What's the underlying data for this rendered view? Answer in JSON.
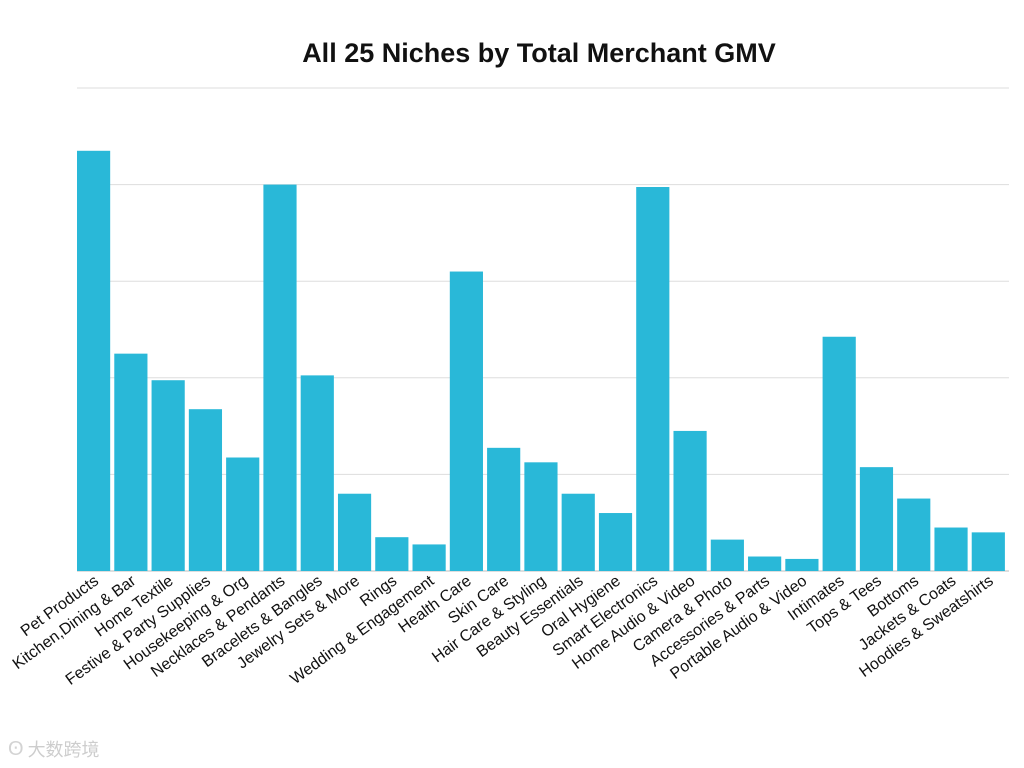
{
  "chart_data": {
    "type": "bar",
    "title": "All 25 Niches by Total Merchant GMV",
    "xlabel": "",
    "ylabel": "",
    "ylim": [
      0,
      100
    ],
    "grid": true,
    "y_tick_labels_shown": false,
    "bar_color": "#29b8d8",
    "categories": [
      "Pet Products",
      "Kitchen,Dining & Bar",
      "Home Textile",
      "Festive & Party Supplies",
      "Housekeeping & Org",
      "Necklaces & Pendants",
      "Bracelets & Bangles",
      "Jewelry Sets & More",
      "Rings",
      "Wedding & Engagement",
      "Health Care",
      "Skin Care",
      "Hair Care & Styling",
      "Beauty Essentials",
      "Oral Hygiene",
      "Smart Electronics",
      "Home Audio & Video",
      "Camera & Photo",
      "Accessories & Parts",
      "Portable Audio & Video",
      "Intimates",
      "Tops & Tees",
      "Bottoms",
      "Jackets & Coats",
      "Hoodies & Sweatshirts"
    ],
    "values": [
      87,
      45,
      39.5,
      33.5,
      23.5,
      80,
      40.5,
      16,
      7,
      5.5,
      62,
      25.5,
      22.5,
      16,
      12,
      79.5,
      29,
      6.5,
      3,
      2.5,
      48.5,
      21.5,
      15,
      9,
      8
    ]
  },
  "watermark": {
    "text": "大数跨境",
    "icon": "logo-icon"
  }
}
